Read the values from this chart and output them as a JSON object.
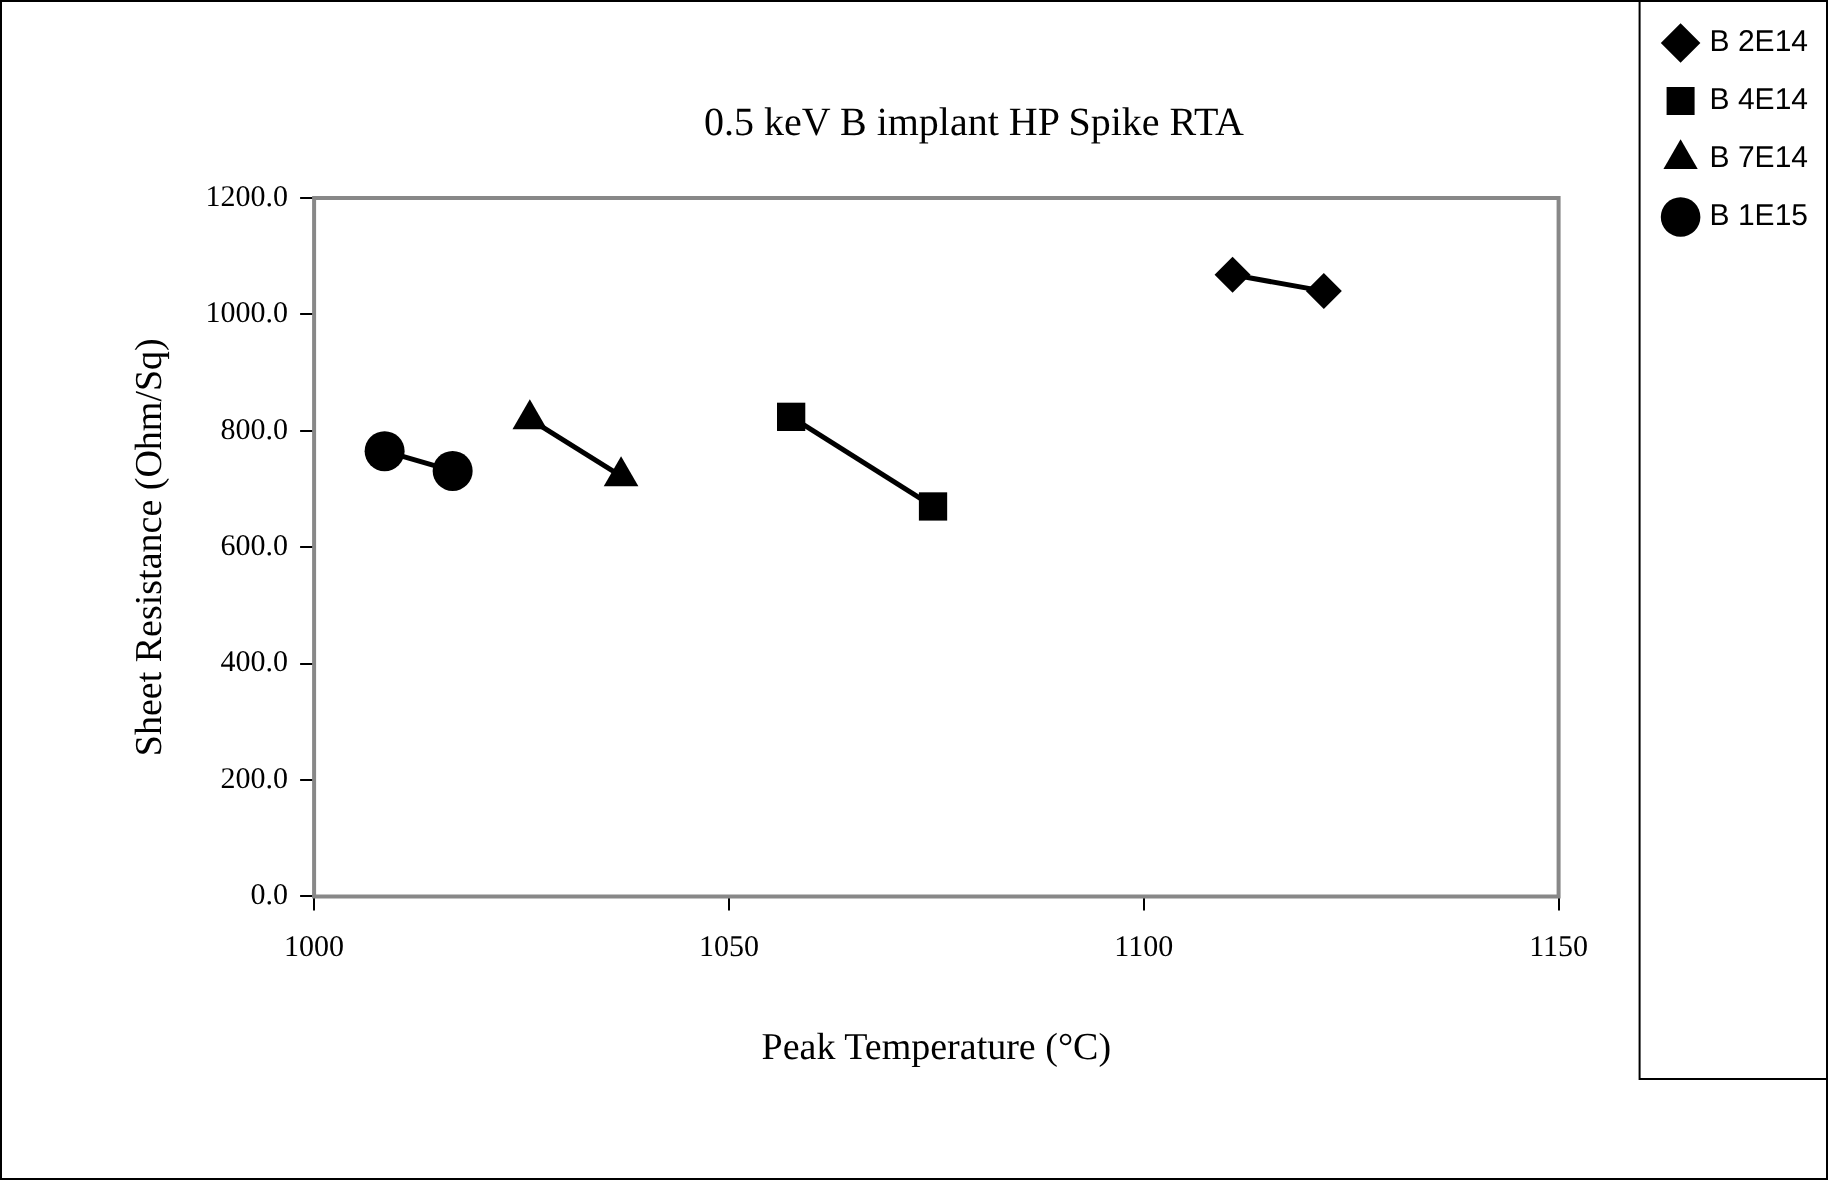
{
  "chart_data": {
    "type": "line",
    "title": "0.5 keV B implant HP Spike RTA",
    "xlabel": "Peak Temperature (°C)",
    "ylabel": "Sheet Resistance (Ohm/Sq)",
    "series": [
      {
        "name": "B 2E14",
        "color": "#000000",
        "marker": "diamond",
        "x": [
          1110.7,
          1121.7
        ],
        "values": [
          1068,
          1040
        ]
      },
      {
        "name": "B 4E14",
        "color": "#000000",
        "marker": "square",
        "x": [
          1057.5,
          1074.6
        ],
        "values": [
          824,
          670
        ]
      },
      {
        "name": "B 7E14",
        "color": "#000000",
        "marker": "triangle",
        "x": [
          1026,
          1037
        ],
        "values": [
          820,
          722
        ]
      },
      {
        "name": "B 1E15",
        "color": "#000000",
        "marker": "circle",
        "x": [
          1008.5,
          1016.7
        ],
        "values": [
          765,
          731
        ]
      }
    ],
    "xlim": [
      1000,
      1150
    ],
    "xticks": [
      1000,
      1050,
      1100,
      1150
    ],
    "ylim": [
      0,
      1200
    ],
    "yticks": [
      {
        "value": 0,
        "label": "0.0"
      },
      {
        "value": 200,
        "label": "200.0"
      },
      {
        "value": 400,
        "label": "400.0"
      },
      {
        "value": 600,
        "label": "600.0"
      },
      {
        "value": 800,
        "label": "800.0"
      },
      {
        "value": 1000,
        "label": "1000.0"
      },
      {
        "value": 1200,
        "label": "1200.0"
      }
    ],
    "grid": false,
    "legend": "top right",
    "line_style": "solid"
  }
}
